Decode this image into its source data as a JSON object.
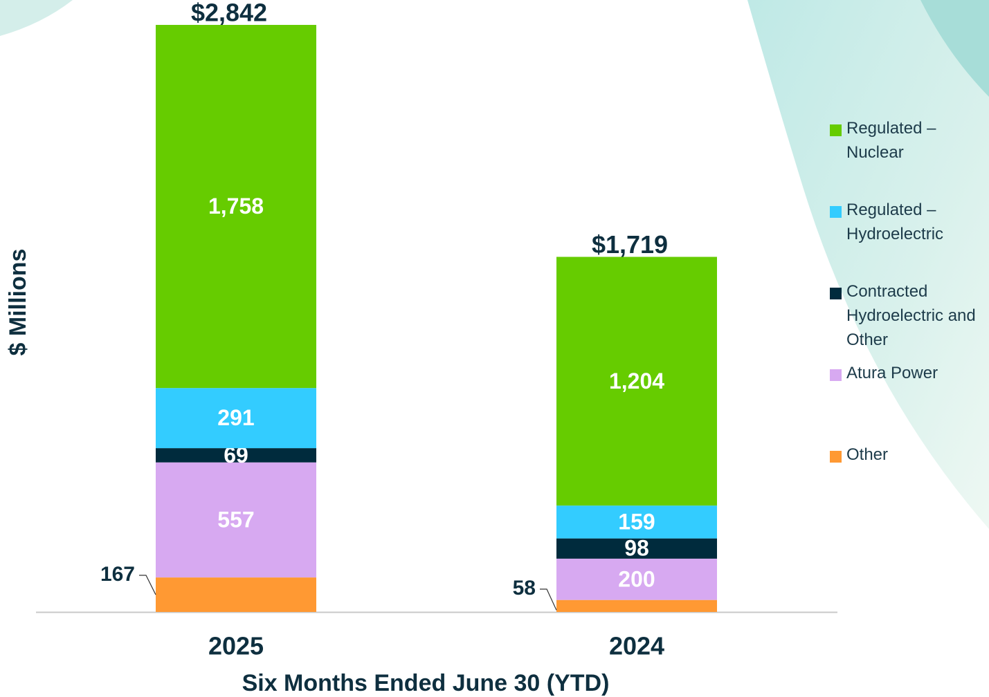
{
  "chart_data": {
    "type": "stacked_bar",
    "y_axis_label": "$ Millions",
    "x_axis_label": "Six Months Ended June 30 (YTD)",
    "categories": [
      "2025",
      "2024"
    ],
    "totals": [
      2842,
      1719
    ],
    "total_labels": [
      "$2,842",
      "$1,719"
    ],
    "series": [
      {
        "name": "Regulated – Nuclear",
        "color": "#66cc00",
        "values": [
          1758,
          1204
        ],
        "value_labels": [
          "1,758",
          "1,204"
        ]
      },
      {
        "name": "Regulated – Hydroelectric",
        "color": "#33ccff",
        "values": [
          291,
          159
        ]
      },
      {
        "name": "Contracted Hydroelectric and Other",
        "color": "#002b3d",
        "values": [
          69,
          98
        ]
      },
      {
        "name": "Atura Power",
        "color": "#d7a9f1",
        "values": [
          557,
          200
        ]
      },
      {
        "name": "Other",
        "color": "#ff9933",
        "values": [
          167,
          58
        ]
      }
    ]
  }
}
